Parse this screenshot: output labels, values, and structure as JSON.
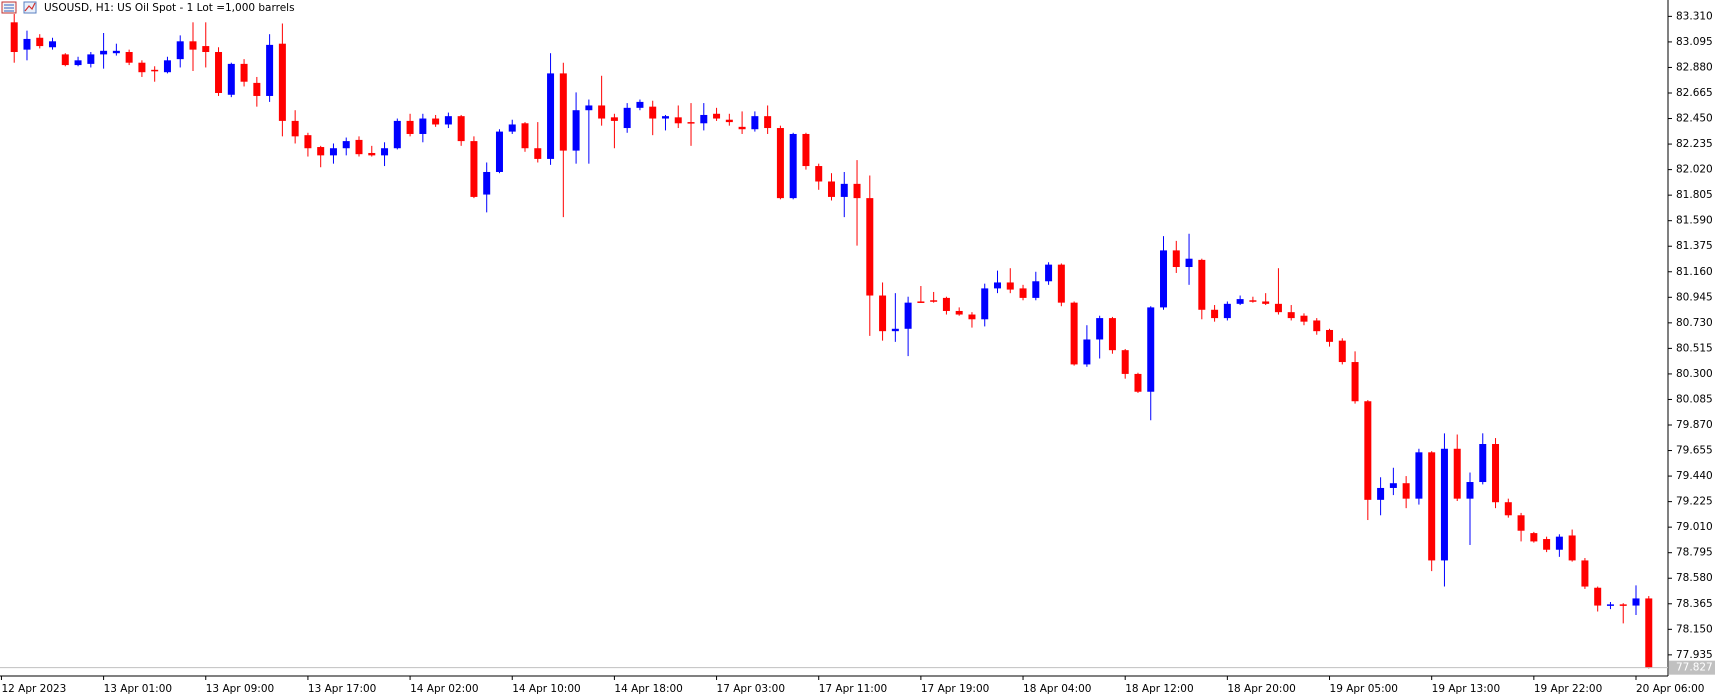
{
  "chart_data": {
    "type": "candlestick",
    "title": "USOUSD, H1:  US Oil Spot - 1 Lot =1,000 barrels",
    "up_color": "#0000ff",
    "down_color": "#ff0000",
    "categories": [
      "12 Apr 2023",
      null,
      null,
      null,
      null,
      null,
      null,
      null,
      "13 Apr 01:00",
      null,
      null,
      null,
      null,
      null,
      null,
      null,
      "13 Apr 09:00",
      null,
      null,
      null,
      null,
      null,
      null,
      null,
      "13 Apr 17:00",
      null,
      null,
      null,
      null,
      null,
      null,
      null,
      "14 Apr 02:00",
      null,
      null,
      null,
      null,
      null,
      null,
      null,
      "14 Apr 10:00",
      null,
      null,
      null,
      null,
      null,
      null,
      null,
      "14 Apr 18:00",
      null,
      null,
      null,
      null,
      null,
      null,
      null,
      "17 Apr 03:00",
      null,
      null,
      null,
      null,
      null,
      null,
      null,
      "17 Apr 11:00",
      null,
      null,
      null,
      null,
      null,
      null,
      null,
      "17 Apr 19:00",
      null,
      null,
      null,
      null,
      null,
      null,
      null,
      "18 Apr 04:00",
      null,
      null,
      null,
      null,
      null,
      null,
      null,
      "18 Apr 12:00",
      null,
      null,
      null,
      null,
      null,
      null,
      null,
      "18 Apr 20:00",
      null,
      null,
      null,
      null,
      null,
      null,
      null,
      "19 Apr 05:00",
      null,
      null,
      null,
      null,
      null,
      null,
      null,
      "19 Apr 13:00",
      null,
      null,
      null,
      null,
      null,
      null,
      null,
      "19 Apr 22:00",
      null,
      null,
      null,
      null,
      null,
      null,
      null,
      "20 Apr 06:00",
      null
    ],
    "open": [
      null,
      83.26,
      83.03,
      83.13,
      83.05,
      82.99,
      82.9,
      82.91,
      82.99,
      83.0,
      83.01,
      82.92,
      82.86,
      82.84,
      82.95,
      83.1,
      83.06,
      83.01,
      82.65,
      82.91,
      82.75,
      82.64,
      83.08,
      82.43,
      82.31,
      82.21,
      82.14,
      82.2,
      82.27,
      82.16,
      82.14,
      82.2,
      82.43,
      82.32,
      82.45,
      82.4,
      82.47,
      82.26,
      81.81,
      82.0,
      82.34,
      82.41,
      82.2,
      82.11,
      82.83,
      82.18,
      82.52,
      82.56,
      82.46,
      82.37,
      82.54,
      82.55,
      82.45,
      82.46,
      82.42,
      82.41,
      82.49,
      82.44,
      82.38,
      82.36,
      82.47,
      82.37,
      81.78,
      82.32,
      82.05,
      81.92,
      81.79,
      81.9,
      81.78,
      80.96,
      80.66,
      80.68,
      80.91,
      80.92,
      80.94,
      80.83,
      80.8,
      80.76,
      81.02,
      81.07,
      81.02,
      80.94,
      81.08,
      81.22,
      80.9,
      80.38,
      80.59,
      80.77,
      80.5,
      80.3,
      80.15,
      80.86,
      81.34,
      81.2,
      81.26,
      80.84,
      80.77,
      80.89,
      80.92,
      80.91,
      80.89,
      80.82,
      80.79,
      80.75,
      80.67,
      80.58,
      80.4,
      80.07,
      79.24,
      79.34,
      79.38,
      79.25,
      79.64,
      78.73,
      79.67,
      79.25,
      79.39,
      79.71,
      79.22,
      79.11,
      78.96,
      78.91,
      78.82,
      78.94,
      78.73,
      78.5,
      78.35,
      78.36,
      78.35,
      78.41
    ],
    "high": [
      null,
      83.33,
      83.19,
      83.16,
      83.13,
      83.0,
      82.97,
      83.01,
      83.17,
      83.08,
      83.03,
      82.94,
      82.89,
      82.97,
      83.15,
      83.26,
      83.26,
      83.05,
      82.92,
      82.95,
      82.8,
      83.16,
      83.25,
      82.52,
      82.33,
      82.22,
      82.24,
      82.29,
      82.3,
      82.22,
      82.25,
      82.45,
      82.49,
      82.49,
      82.48,
      82.5,
      82.48,
      82.3,
      82.08,
      82.36,
      82.44,
      82.42,
      82.42,
      83.0,
      82.92,
      82.67,
      82.61,
      82.81,
      82.49,
      82.58,
      82.61,
      82.6,
      82.48,
      82.56,
      82.58,
      82.58,
      82.54,
      82.49,
      82.51,
      82.51,
      82.56,
      82.39,
      82.33,
      82.33,
      82.07,
      81.99,
      82.0,
      82.1,
      81.97,
      81.07,
      80.98,
      80.95,
      81.04,
      80.99,
      80.95,
      80.86,
      80.82,
      81.06,
      81.17,
      81.19,
      81.05,
      81.16,
      81.24,
      81.23,
      80.91,
      80.71,
      80.79,
      80.78,
      80.51,
      80.31,
      80.87,
      81.46,
      81.42,
      81.48,
      81.27,
      80.88,
      80.91,
      80.96,
      80.95,
      80.98,
      81.19,
      80.88,
      80.81,
      80.77,
      80.68,
      80.6,
      80.49,
      80.08,
      79.43,
      79.51,
      79.44,
      79.67,
      79.65,
      79.8,
      79.79,
      79.47,
      79.8,
      79.76,
      79.25,
      79.13,
      78.97,
      78.93,
      78.95,
      78.99,
      78.75,
      78.51,
      78.38,
      78.37,
      78.52,
      78.43
    ],
    "low": [
      null,
      82.92,
      82.94,
      83.04,
      83.03,
      82.89,
      82.89,
      82.88,
      82.87,
      82.98,
      82.9,
      82.8,
      82.76,
      82.83,
      82.88,
      82.85,
      82.88,
      82.64,
      82.63,
      82.72,
      82.55,
      82.59,
      82.3,
      82.24,
      82.13,
      82.04,
      82.07,
      82.14,
      82.13,
      82.13,
      82.05,
      82.19,
      82.3,
      82.25,
      82.38,
      82.37,
      82.22,
      81.78,
      81.66,
      81.99,
      82.32,
      82.17,
      82.08,
      82.06,
      81.62,
      82.07,
      82.07,
      82.39,
      82.2,
      82.33,
      82.52,
      82.31,
      82.35,
      82.37,
      82.22,
      82.35,
      82.43,
      82.39,
      82.32,
      82.34,
      82.32,
      81.77,
      81.77,
      82.02,
      81.85,
      81.76,
      81.62,
      81.38,
      80.62,
      80.58,
      80.57,
      80.45,
      80.9,
      80.9,
      80.8,
      80.79,
      80.69,
      80.7,
      80.98,
      80.98,
      80.92,
      80.92,
      81.05,
      80.87,
      80.37,
      80.36,
      80.43,
      80.47,
      80.26,
      80.14,
      79.91,
      80.84,
      81.15,
      81.05,
      80.76,
      80.74,
      80.75,
      80.88,
      80.9,
      80.88,
      80.8,
      80.75,
      80.71,
      80.63,
      80.53,
      80.38,
      80.05,
      79.07,
      79.11,
      79.28,
      79.17,
      79.2,
      78.64,
      78.51,
      79.23,
      78.86,
      79.37,
      79.17,
      79.09,
      78.89,
      78.88,
      78.8,
      78.76,
      78.72,
      78.49,
      78.3,
      78.32,
      78.2,
      78.27,
      77.82
    ],
    "close": [
      null,
      83.01,
      83.12,
      83.06,
      83.1,
      82.9,
      82.94,
      82.99,
      83.02,
      83.02,
      82.92,
      82.84,
      82.85,
      82.94,
      83.1,
      83.03,
      83.01,
      82.665,
      82.91,
      82.76,
      82.64,
      83.07,
      82.43,
      82.3,
      82.2,
      82.14,
      82.2,
      82.26,
      82.15,
      82.14,
      82.2,
      82.43,
      82.32,
      82.45,
      82.4,
      82.47,
      82.26,
      81.79,
      82.0,
      82.34,
      82.4,
      82.2,
      82.11,
      82.83,
      82.18,
      82.52,
      82.56,
      82.45,
      82.43,
      82.54,
      82.59,
      82.45,
      82.47,
      82.41,
      82.41,
      82.48,
      82.45,
      82.42,
      82.36,
      82.47,
      82.37,
      81.78,
      82.32,
      82.05,
      81.92,
      81.79,
      81.9,
      81.78,
      80.96,
      80.66,
      80.68,
      80.9,
      80.9,
      80.91,
      80.83,
      80.8,
      80.76,
      81.02,
      81.07,
      81.01,
      80.94,
      81.08,
      81.22,
      80.9,
      80.38,
      80.59,
      80.77,
      80.5,
      80.3,
      80.15,
      80.86,
      81.34,
      81.2,
      81.27,
      80.84,
      80.77,
      80.89,
      80.93,
      80.91,
      80.89,
      80.82,
      80.77,
      80.74,
      80.66,
      80.57,
      80.4,
      80.07,
      79.24,
      79.34,
      79.38,
      79.25,
      79.64,
      78.73,
      79.67,
      79.25,
      79.39,
      79.71,
      79.22,
      79.11,
      78.98,
      78.89,
      78.82,
      78.93,
      78.73,
      78.51,
      78.35,
      78.36,
      78.35,
      78.41,
      77.827
    ],
    "last_price": 77.827,
    "ylim": [
      77.757,
      83.431
    ],
    "yticks": [
      {
        "value": 83.31,
        "label": "83.310"
      },
      {
        "value": 83.095,
        "label": "83.095"
      },
      {
        "value": 82.88,
        "label": "82.880"
      },
      {
        "value": 82.665,
        "label": "82.665"
      },
      {
        "value": 82.45,
        "label": "82.450"
      },
      {
        "value": 82.235,
        "label": "82.235"
      },
      {
        "value": 82.02,
        "label": "82.020"
      },
      {
        "value": 81.805,
        "label": "81.805"
      },
      {
        "value": 81.59,
        "label": "81.590"
      },
      {
        "value": 81.375,
        "label": "81.375"
      },
      {
        "value": 81.16,
        "label": "81.160"
      },
      {
        "value": 80.945,
        "label": "80.945"
      },
      {
        "value": 80.73,
        "label": "80.730"
      },
      {
        "value": 80.515,
        "label": "80.515"
      },
      {
        "value": 80.3,
        "label": "80.300"
      },
      {
        "value": 80.085,
        "label": "80.085"
      },
      {
        "value": 79.87,
        "label": "79.870"
      },
      {
        "value": 79.655,
        "label": "79.655"
      },
      {
        "value": 79.44,
        "label": "79.440"
      },
      {
        "value": 79.225,
        "label": "79.225"
      },
      {
        "value": 79.01,
        "label": "79.010"
      },
      {
        "value": 78.795,
        "label": "78.795"
      },
      {
        "value": 78.58,
        "label": "78.580"
      },
      {
        "value": 78.365,
        "label": "78.365"
      },
      {
        "value": 78.15,
        "label": "78.150"
      },
      {
        "value": 77.935,
        "label": "77.935"
      }
    ],
    "grid": false
  }
}
